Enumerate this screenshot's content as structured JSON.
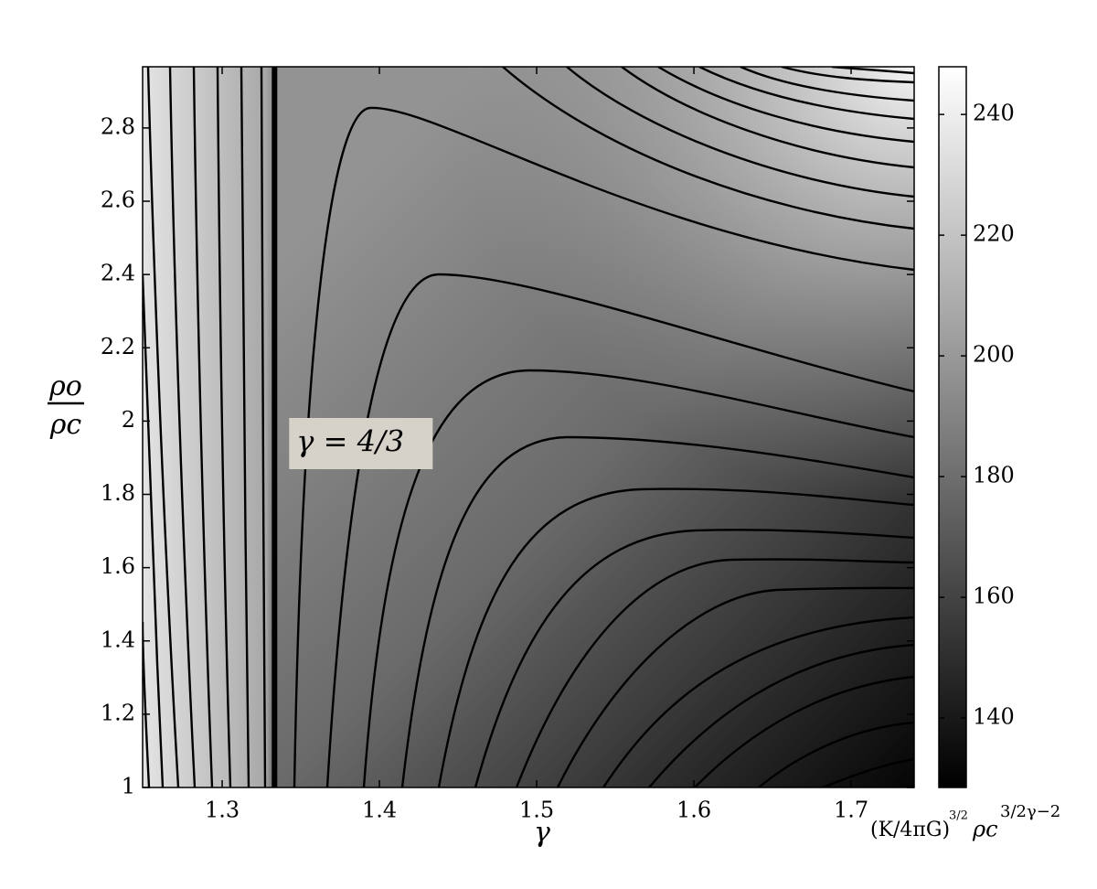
{
  "chart_data": {
    "type": "contour",
    "xlabel": "γ",
    "ylabel": {
      "numerator": "ρo",
      "denominator": "ρc"
    },
    "xlim": [
      1.2494,
      1.7401
    ],
    "xticks": [
      1.3,
      1.4,
      1.5,
      1.6,
      1.7
    ],
    "ylim": [
      1,
      2.967
    ],
    "yticks": [
      1,
      1.2,
      1.4,
      1.6,
      1.8,
      2,
      2.2,
      2.4,
      2.6,
      2.8
    ],
    "colorbar": {
      "lim": [
        128.5,
        247.9
      ],
      "ticks": [
        140,
        160,
        180,
        200,
        220,
        240
      ],
      "label": {
        "base": "(K/4πG)",
        "base_exponent": "3/2",
        "variable": "ρc",
        "variable_exponent": "3/2γ−2"
      }
    },
    "marker_line": {
      "x": 1.3333,
      "label": "γ = 4/3"
    }
  }
}
